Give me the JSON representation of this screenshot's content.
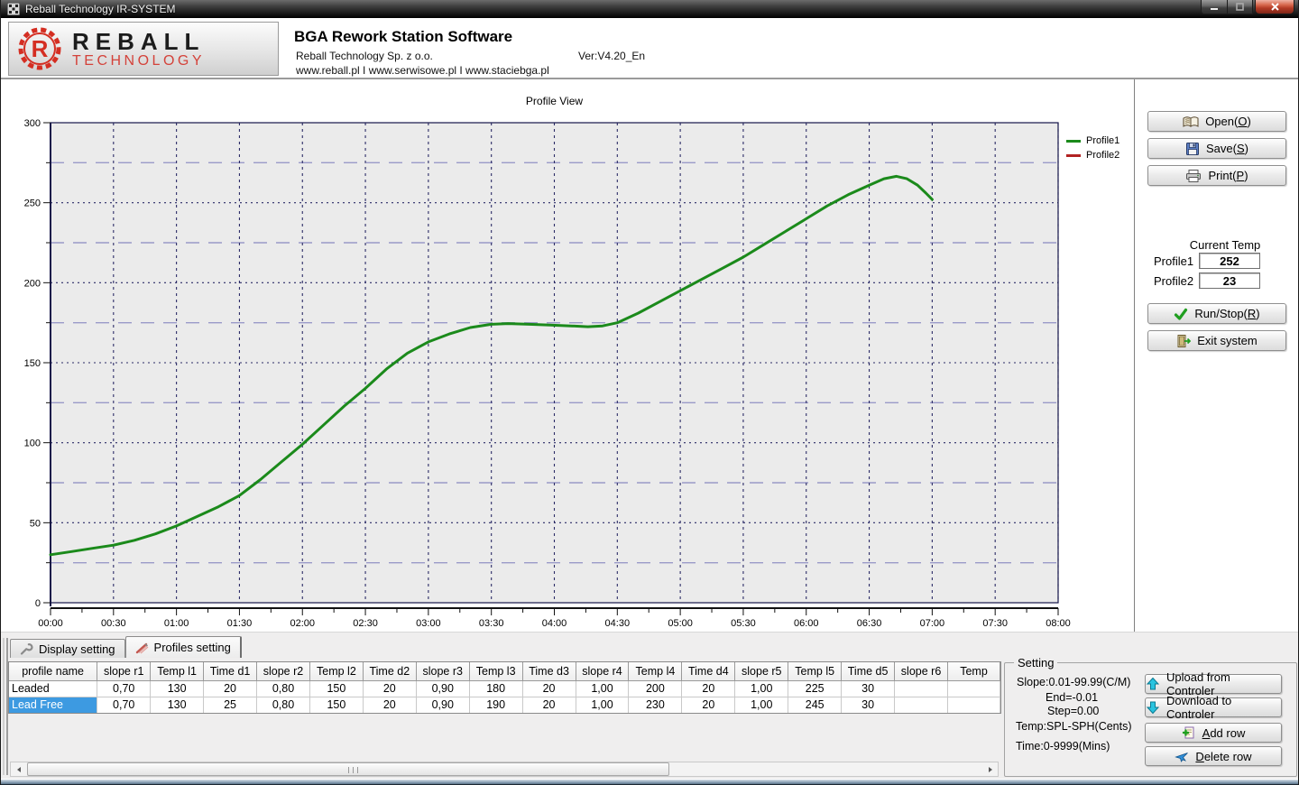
{
  "window": {
    "title": "Reball Technology IR-SYSTEM"
  },
  "header": {
    "logo_line1": "REBALL",
    "logo_line2": "TECHNOLOGY",
    "app_title": "BGA Rework Station Software",
    "company": "Reball Technology Sp. z o.o.",
    "websites": "www.reball.pl I www.serwisowe.pl I www.staciebga.pl",
    "version": "Ver:V4.20_En"
  },
  "chart_data": {
    "type": "line",
    "title": "Profile View",
    "ylim": [
      0,
      300
    ],
    "y_major_step": 50,
    "y_minor_step": 25,
    "x_minutes_range": [
      0,
      480
    ],
    "x_major_step_min": 30,
    "x_minor_step_min": 15,
    "x_tick_labels": [
      "00:00",
      "00:30",
      "01:00",
      "01:30",
      "02:00",
      "02:30",
      "03:00",
      "03:30",
      "04:00",
      "04:30",
      "05:00",
      "05:30",
      "06:00",
      "06:30",
      "07:00",
      "07:30",
      "08:00"
    ],
    "grid": true,
    "legend_position": "outside-right-top",
    "plot_bg": "#ebebeb",
    "grid_major_color": "#2b2b66",
    "grid_minor_color": "#9a9ac8",
    "axis_color": "#16164a",
    "series": [
      {
        "name": "Profile1",
        "color": "#1b8a1b",
        "points": [
          [
            0,
            30
          ],
          [
            10,
            32
          ],
          [
            20,
            34
          ],
          [
            30,
            36
          ],
          [
            40,
            39
          ],
          [
            50,
            43
          ],
          [
            60,
            48
          ],
          [
            70,
            54
          ],
          [
            80,
            60
          ],
          [
            90,
            67
          ],
          [
            100,
            77
          ],
          [
            110,
            88
          ],
          [
            120,
            99
          ],
          [
            130,
            111
          ],
          [
            140,
            123
          ],
          [
            150,
            134
          ],
          [
            160,
            146
          ],
          [
            170,
            156
          ],
          [
            180,
            163
          ],
          [
            190,
            168
          ],
          [
            200,
            172
          ],
          [
            210,
            174
          ],
          [
            218,
            174.5
          ],
          [
            228,
            174
          ],
          [
            238,
            173.5
          ],
          [
            248,
            173
          ],
          [
            256,
            172.5
          ],
          [
            263,
            173
          ],
          [
            270,
            175
          ],
          [
            280,
            181
          ],
          [
            290,
            188
          ],
          [
            300,
            195
          ],
          [
            310,
            202
          ],
          [
            320,
            209
          ],
          [
            330,
            216
          ],
          [
            340,
            224
          ],
          [
            350,
            232
          ],
          [
            360,
            240
          ],
          [
            370,
            248
          ],
          [
            380,
            255
          ],
          [
            390,
            261
          ],
          [
            397,
            265
          ],
          [
            403,
            266.5
          ],
          [
            408,
            265
          ],
          [
            413,
            261
          ],
          [
            417,
            256
          ],
          [
            420,
            252
          ]
        ]
      },
      {
        "name": "Profile2",
        "color": "#b22222",
        "points": []
      }
    ]
  },
  "right_panel": {
    "open": {
      "pre": "Open(",
      "key": "O",
      "post": ")"
    },
    "save": {
      "pre": "Save(",
      "key": "S",
      "post": ")"
    },
    "print": {
      "pre": "Print(",
      "key": "P",
      "post": ")"
    },
    "current_temp": {
      "title": "Current Temp",
      "rows": [
        {
          "label": "Profile1",
          "value": "252"
        },
        {
          "label": "Profile2",
          "value": "23"
        }
      ]
    },
    "run_stop": {
      "pre": "Run/Stop(",
      "key": "R",
      "post": ")"
    },
    "exit": {
      "label": "Exit system"
    }
  },
  "tabs": [
    {
      "label": "Display setting",
      "icon": "wrench-icon",
      "active": false
    },
    {
      "label": "Profiles setting",
      "icon": "profiles-icon",
      "active": true
    }
  ],
  "profiles_table": {
    "headers": [
      "profile name",
      "slope r1",
      "Temp l1",
      "Time d1",
      "slope r2",
      "Temp l2",
      "Time d2",
      "slope r3",
      "Temp l3",
      "Time d3",
      "slope r4",
      "Temp l4",
      "Time d4",
      "slope r5",
      "Temp l5",
      "Time d5",
      "slope r6",
      "Temp"
    ],
    "rows": [
      {
        "selected": false,
        "cells": [
          "Leaded",
          "0,70",
          "130",
          "20",
          "0,80",
          "150",
          "20",
          "0,90",
          "180",
          "20",
          "1,00",
          "200",
          "20",
          "1,00",
          "225",
          "30",
          "",
          ""
        ]
      },
      {
        "selected": true,
        "cells": [
          "Lead Free",
          "0,70",
          "130",
          "25",
          "0,80",
          "150",
          "20",
          "0,90",
          "190",
          "20",
          "1,00",
          "230",
          "20",
          "1,00",
          "245",
          "30",
          "",
          ""
        ]
      }
    ]
  },
  "setting_panel": {
    "caption": "Setting",
    "slope_line": "Slope:0.01-99.99(C/M)",
    "end_line": "End=-0.01",
    "step_line": "Step=0.00",
    "temp_line": "Temp:SPL-SPH(Cents)",
    "time_line": "Time:0-9999(Mins)",
    "upload": {
      "label": "Upload from Controler"
    },
    "download": {
      "label": "Download to Controler"
    },
    "add": {
      "pre": "",
      "key": "A",
      "post": "dd row"
    },
    "delete": {
      "pre": "",
      "key": "D",
      "post": "elete row"
    }
  }
}
